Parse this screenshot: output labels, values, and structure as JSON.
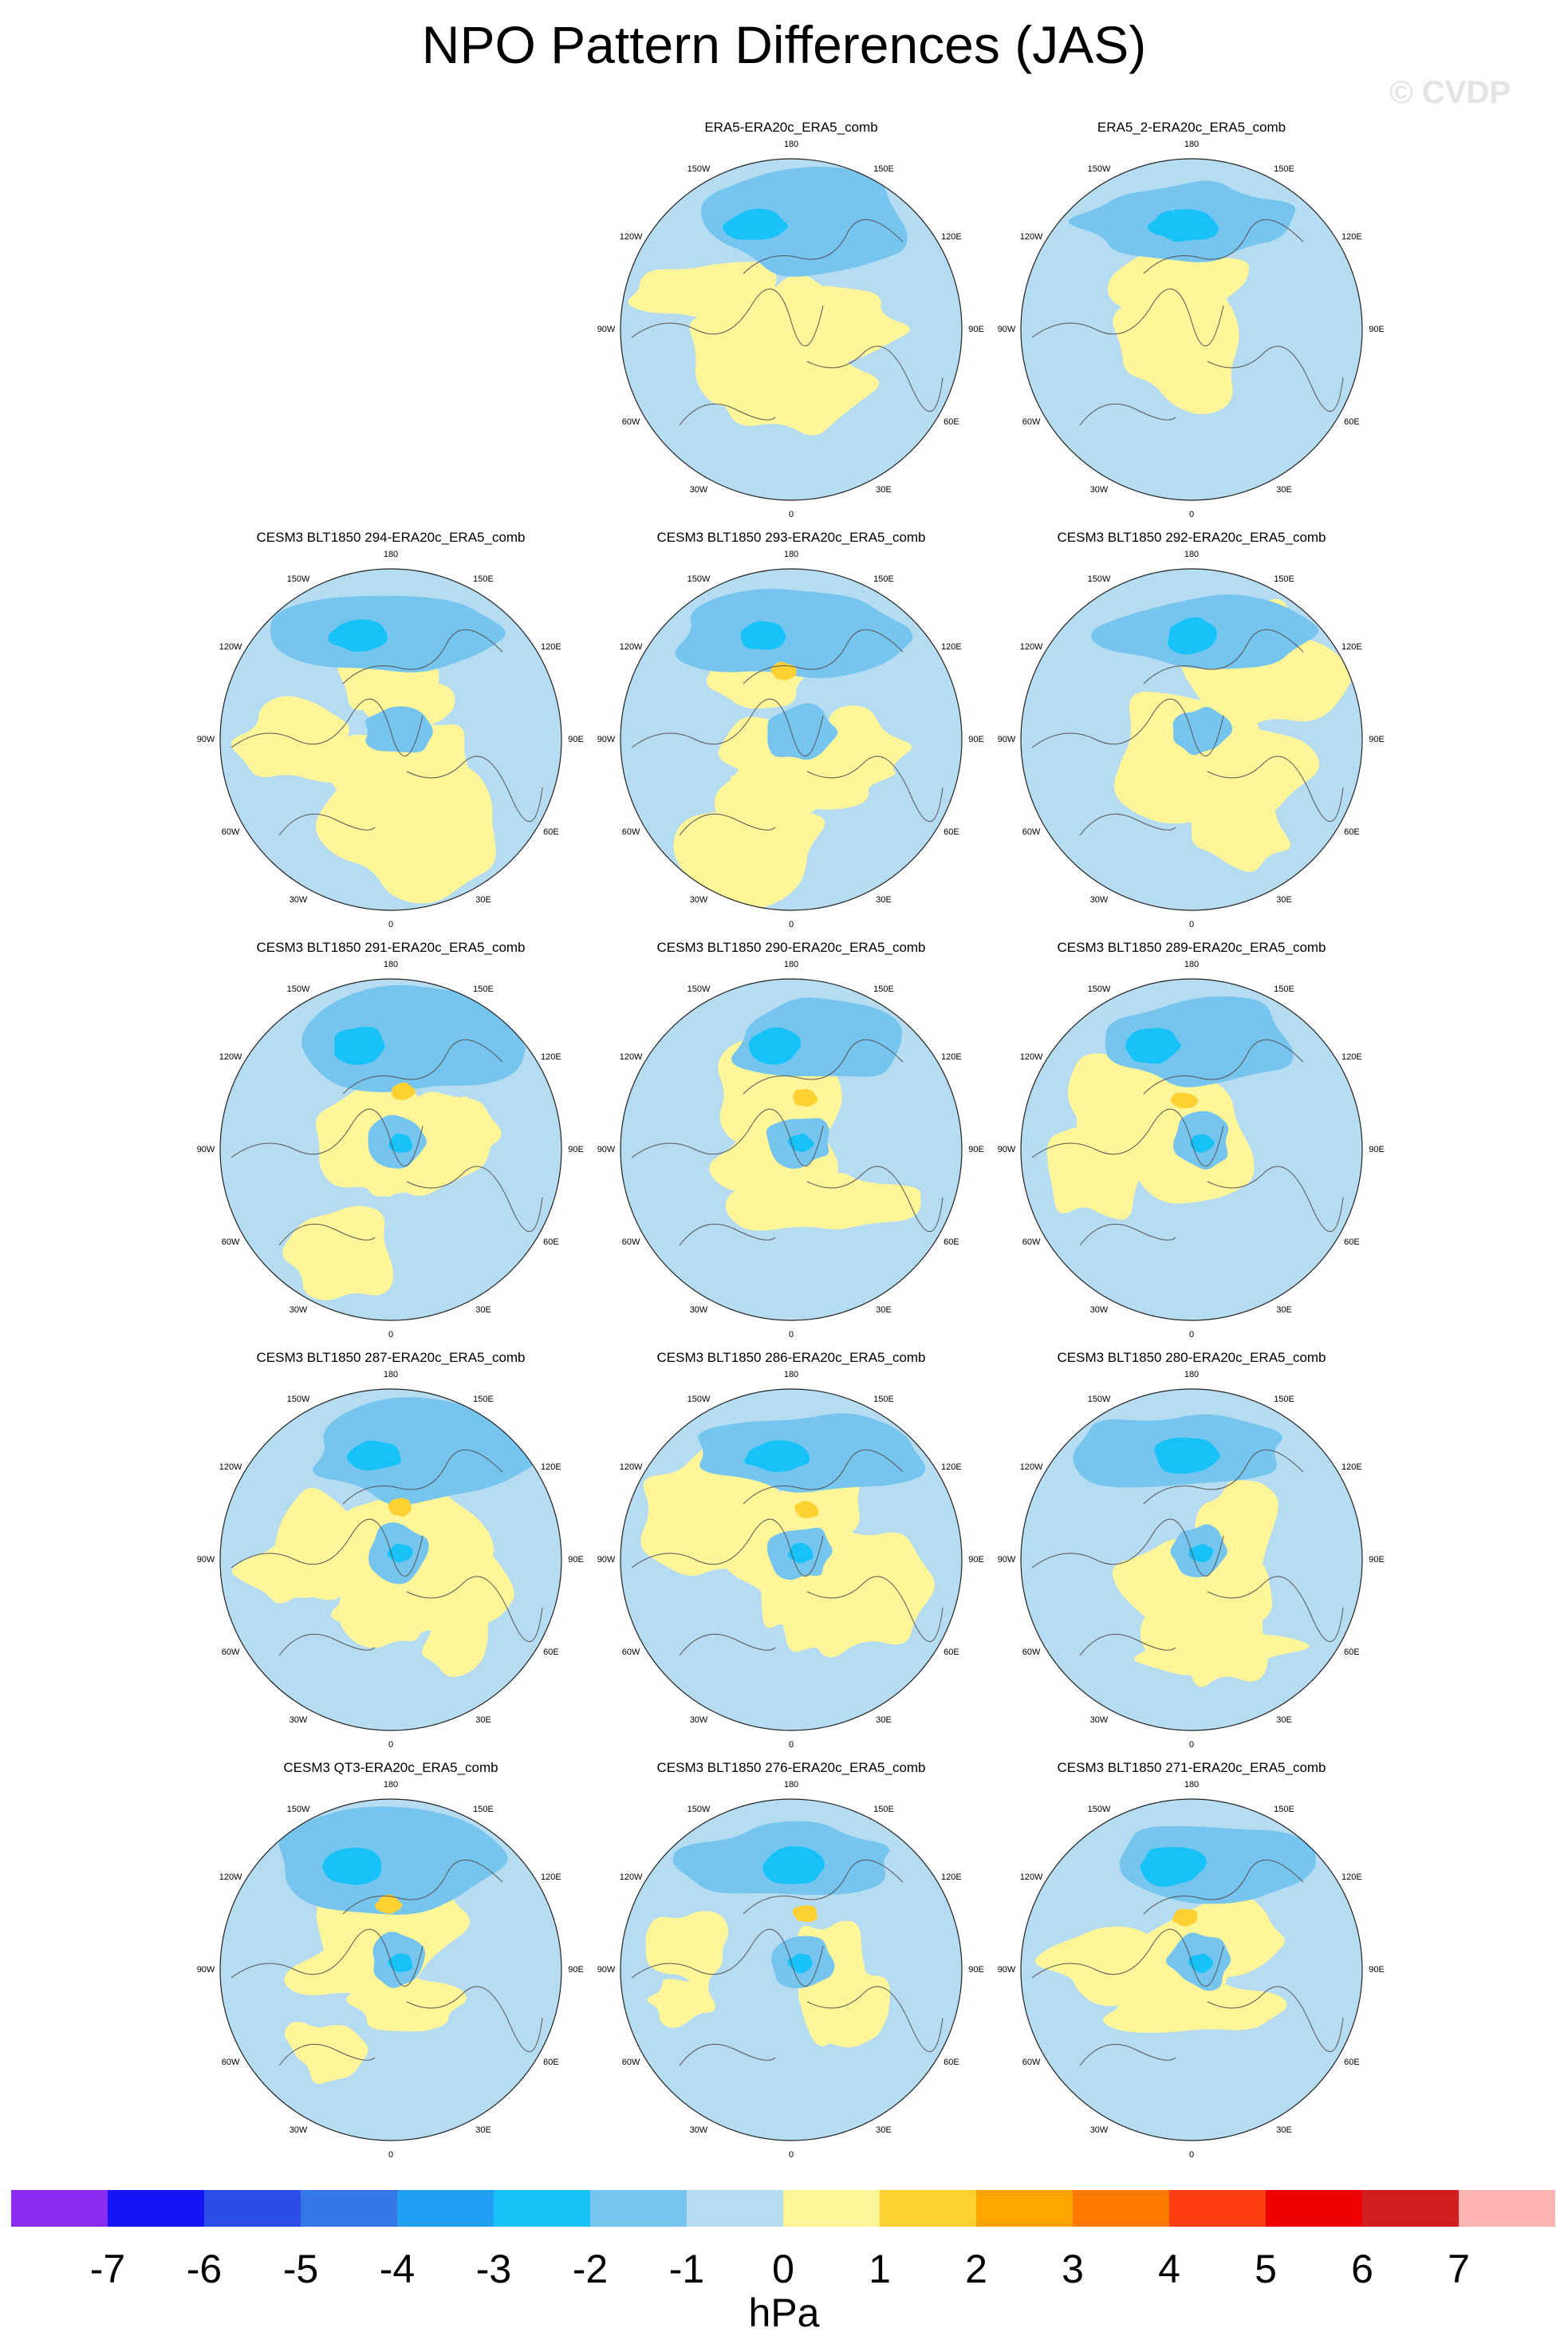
{
  "title": "NPO Pattern Differences (JAS)",
  "watermark": "© CVDP",
  "projection": "north polar stereographic",
  "lon_labels": [
    "180",
    "150E",
    "120E",
    "90E",
    "60E",
    "30E",
    "0",
    "30W",
    "60W",
    "90W",
    "120W",
    "150W"
  ],
  "fill_colors": {
    "ocean_neg1_0": "#b5dcf1",
    "pos_0_1": "#fff599",
    "pos_1_2": "#fdd132",
    "neg_2_1": "#75c5ef",
    "neg_3_2": "#16c2f7",
    "neg_4_3": "#1f9ef3"
  },
  "panels": [
    {
      "title": "ERA5-ERA20c_ERA5_comb",
      "row": 0,
      "col": 1
    },
    {
      "title": "ERA5_2-ERA20c_ERA5_comb",
      "row": 0,
      "col": 2
    },
    {
      "title": "CESM3 BLT1850 294-ERA20c_ERA5_comb",
      "row": 1,
      "col": 0
    },
    {
      "title": "CESM3 BLT1850 293-ERA20c_ERA5_comb",
      "row": 1,
      "col": 1
    },
    {
      "title": "CESM3 BLT1850 292-ERA20c_ERA5_comb",
      "row": 1,
      "col": 2
    },
    {
      "title": "CESM3 BLT1850 291-ERA20c_ERA5_comb",
      "row": 2,
      "col": 0
    },
    {
      "title": "CESM3 BLT1850 290-ERA20c_ERA5_comb",
      "row": 2,
      "col": 1
    },
    {
      "title": "CESM3 BLT1850 289-ERA20c_ERA5_comb",
      "row": 2,
      "col": 2
    },
    {
      "title": "CESM3 BLT1850 287-ERA20c_ERA5_comb",
      "row": 3,
      "col": 0
    },
    {
      "title": "CESM3 BLT1850 286-ERA20c_ERA5_comb",
      "row": 3,
      "col": 1
    },
    {
      "title": "CESM3 BLT1850 280-ERA20c_ERA5_comb",
      "row": 3,
      "col": 2
    },
    {
      "title": "CESM3 QT3-ERA20c_ERA5_comb",
      "row": 4,
      "col": 0
    },
    {
      "title": "CESM3 BLT1850 276-ERA20c_ERA5_comb",
      "row": 4,
      "col": 1
    },
    {
      "title": "CESM3 BLT1850 271-ERA20c_ERA5_comb",
      "row": 4,
      "col": 2
    }
  ],
  "colorbar": {
    "units": "hPa",
    "ticks": [
      "-7",
      "-6",
      "-5",
      "-4",
      "-3",
      "-2",
      "-1",
      "0",
      "1",
      "2",
      "3",
      "4",
      "5",
      "6",
      "7"
    ],
    "colors": [
      "#8a2bf0",
      "#1414f5",
      "#2c4de8",
      "#3579e8",
      "#1f9ef3",
      "#16c2f7",
      "#75c5ef",
      "#b5dcf1",
      "#fff599",
      "#fdd132",
      "#fea502",
      "#fe7a00",
      "#ff3f12",
      "#ee0000",
      "#d11f1f",
      "#ffb3b3"
    ]
  }
}
